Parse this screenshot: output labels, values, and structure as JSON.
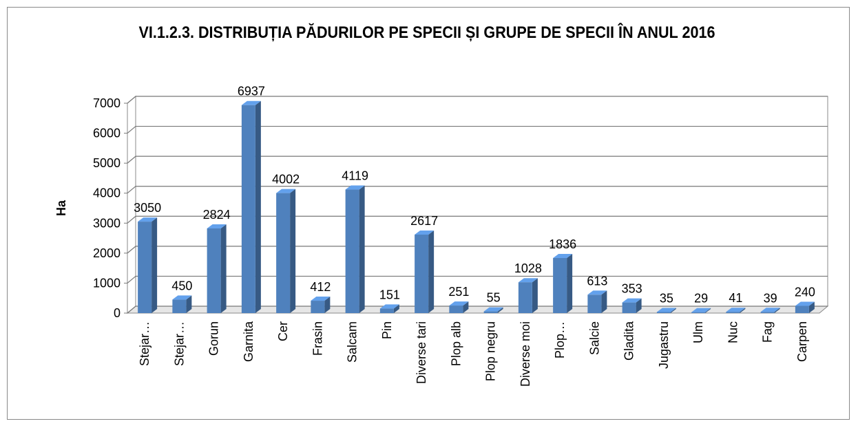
{
  "chart_data": {
    "type": "bar3d",
    "title": "VI.1.2.3. DISTRIBUȚIA PĂDURILOR PE SPECII ȘI GRUPE DE SPECII ÎN ANUL 2016",
    "y_label": "Ha",
    "categories": [
      "Stejar…",
      "Stejar…",
      "Gorun",
      "Garnita",
      "Cer",
      "Frasin",
      "Salcam",
      "Pin",
      "Diverse tari",
      "Plop alb",
      "Plop negru",
      "Diverse moi",
      "Plop…",
      "Salcie",
      "Gladita",
      "Jugastru",
      "Ulm",
      "Nuc",
      "Fag",
      "Carpen"
    ],
    "values": [
      3050,
      450,
      2824,
      6937,
      4002,
      412,
      4119,
      151,
      2617,
      251,
      55,
      1028,
      1836,
      613,
      353,
      35,
      29,
      41,
      39,
      240
    ],
    "color": "#4f81bd",
    "ylim": [
      0,
      7000
    ],
    "yticks": [
      0,
      1000,
      2000,
      3000,
      4000,
      5000,
      6000,
      7000
    ],
    "grid": true
  }
}
